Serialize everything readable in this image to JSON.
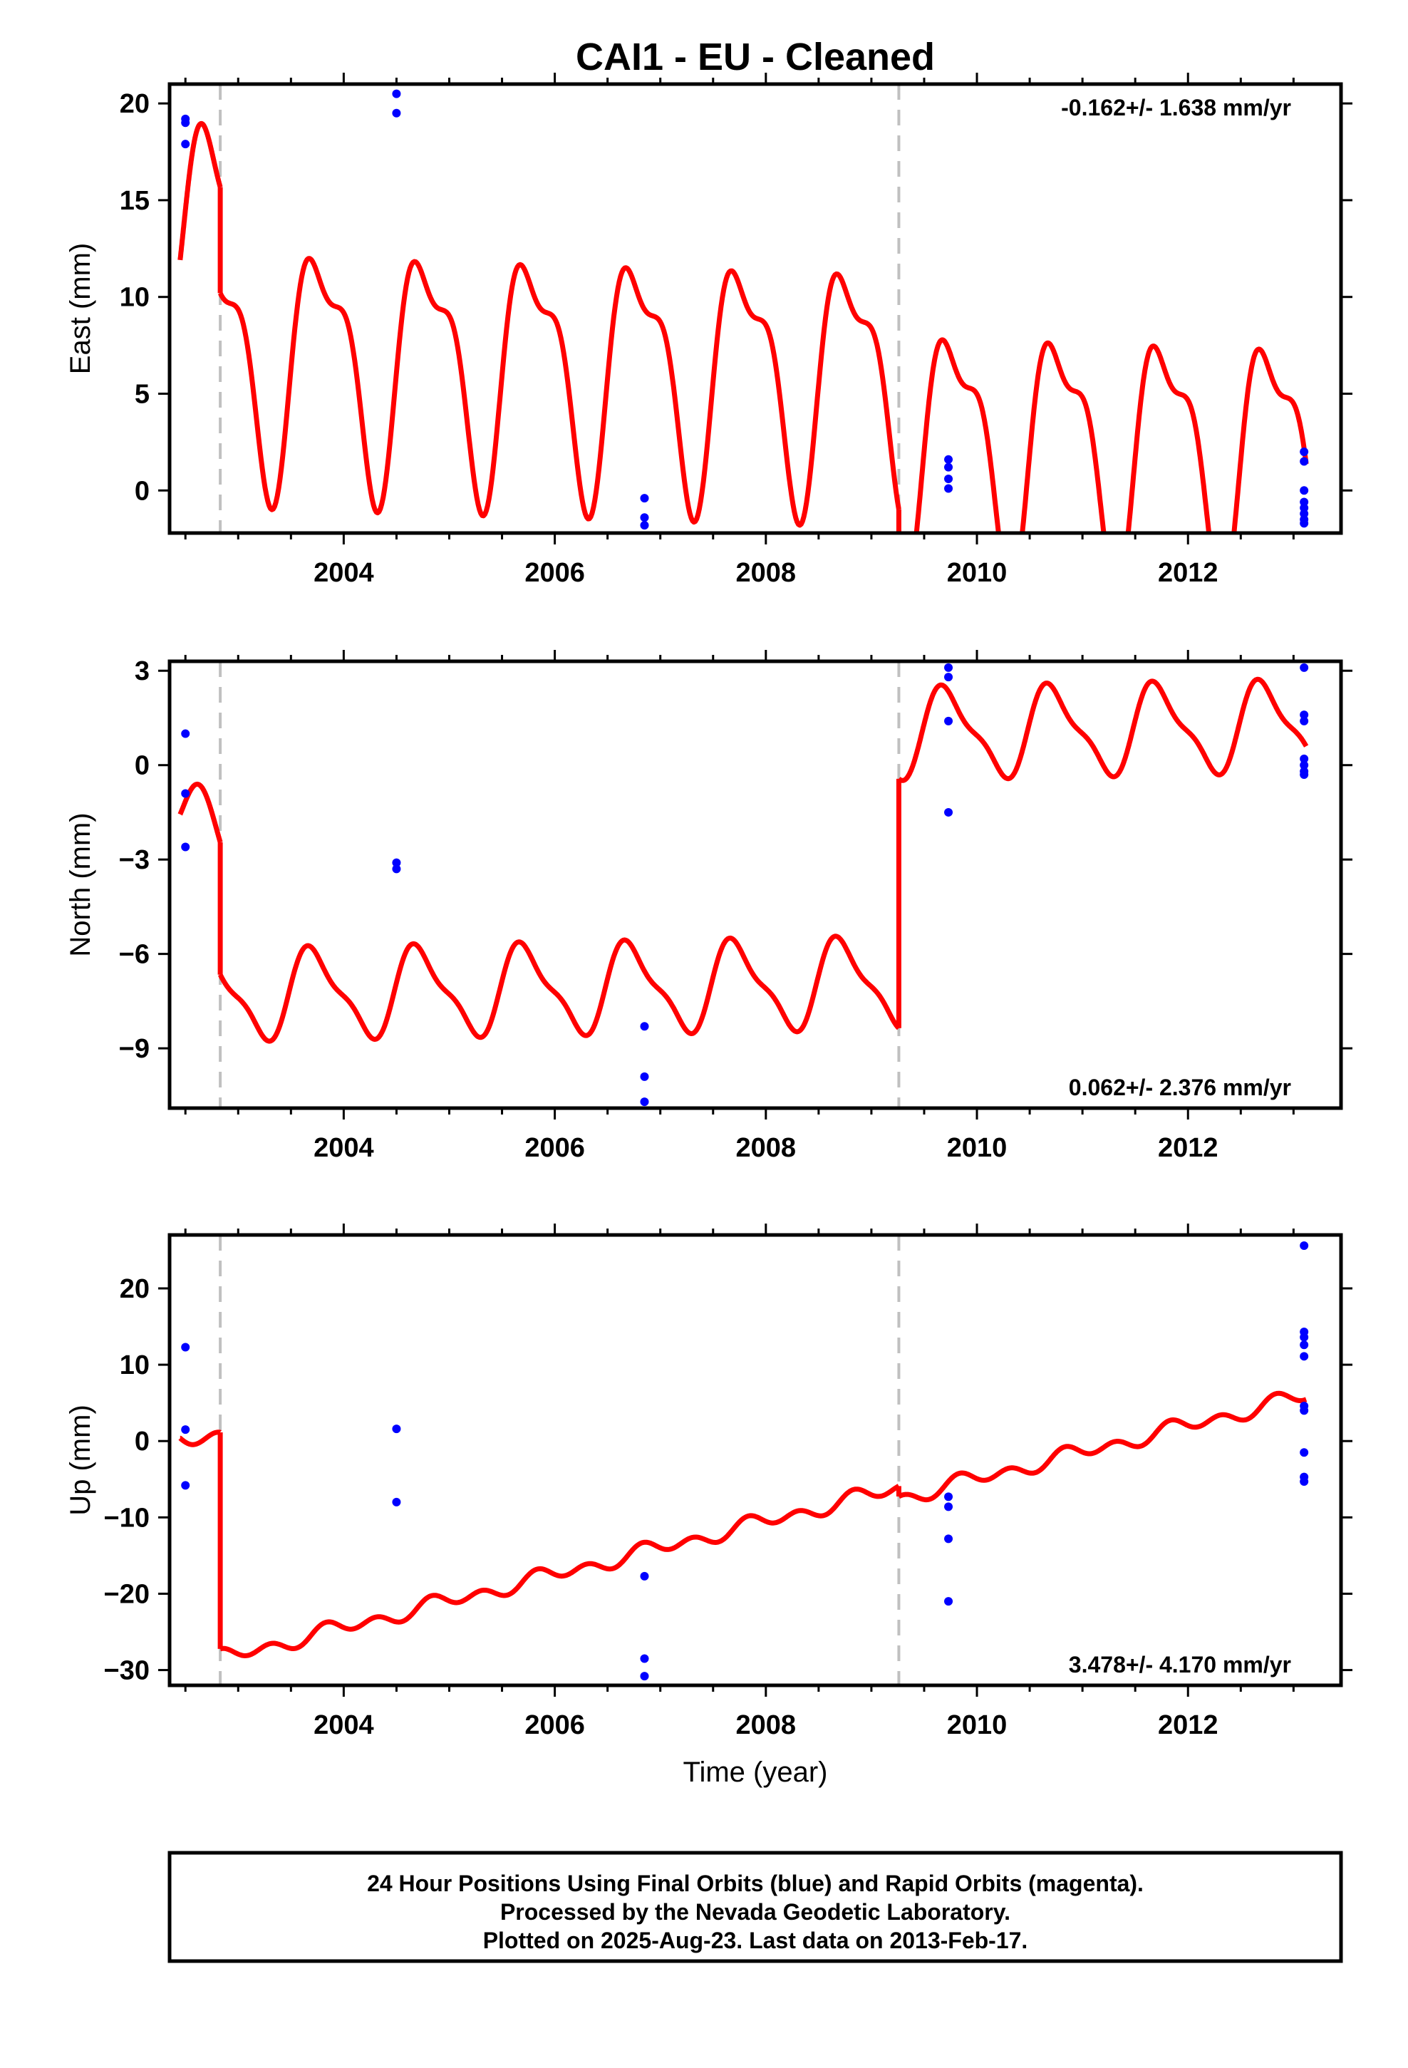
{
  "title": "CAI1  - EU - Cleaned",
  "xlabel": "Time (year)",
  "colors": {
    "model": "#ff0000",
    "data": "#0000ff",
    "offset": "#c0c0c0",
    "frame": "#000000"
  },
  "footer": {
    "line1": "24 Hour Positions Using Final Orbits (blue) and Rapid Orbits (magenta).",
    "line2": "Processed by the Nevada Geodetic Laboratory.",
    "line3": "Plotted on 2025-Aug-23. Last data on 2013-Feb-17."
  },
  "chart_data": [
    {
      "type": "scatter",
      "name": "east",
      "ylabel": "East (mm)",
      "rate_text": "-0.162+/- 1.638 mm/yr",
      "rate_position": "top-right",
      "xlim": [
        2002.35,
        2013.45
      ],
      "ylim": [
        -2.2,
        21.0
      ],
      "xticks": [
        2004,
        2006,
        2008,
        2010,
        2012
      ],
      "yticks": [
        0,
        5,
        10,
        15,
        20
      ],
      "offsets": [
        2002.83,
        2009.26
      ],
      "points": [
        [
          2002.5,
          19.2
        ],
        [
          2002.5,
          19.0
        ],
        [
          2002.5,
          17.9
        ],
        [
          2004.5,
          20.5
        ],
        [
          2004.5,
          19.5
        ],
        [
          2006.85,
          -0.4
        ],
        [
          2006.85,
          -1.4
        ],
        [
          2006.85,
          -1.8
        ],
        [
          2009.73,
          1.6
        ],
        [
          2009.73,
          1.2
        ],
        [
          2009.73,
          0.6
        ],
        [
          2009.73,
          0.1
        ],
        [
          2013.1,
          2.0
        ],
        [
          2013.1,
          1.5
        ],
        [
          2013.1,
          0.0
        ],
        [
          2013.1,
          -0.6
        ],
        [
          2013.1,
          -0.9
        ],
        [
          2013.1,
          -1.2
        ],
        [
          2013.1,
          -1.5
        ],
        [
          2013.1,
          -1.7
        ]
      ],
      "model": {
        "segments": [
          {
            "t0": 2002.45,
            "t1": 2002.83,
            "base": 15.4,
            "slope": -8.0,
            "ref": 2002.45
          },
          {
            "t0": 2002.83,
            "t1": 2009.26,
            "base": 6.85,
            "slope": -0.16,
            "ref": 2003.0
          },
          {
            "t0": 2009.26,
            "t1": 2013.12,
            "base": 2.6,
            "slope": -0.16,
            "ref": 2009.26
          }
        ],
        "annual_cos": 1.5,
        "annual_sin": -5.5,
        "semi_cos": 1.0,
        "semi_sin": 2.0
      }
    },
    {
      "type": "scatter",
      "name": "north",
      "ylabel": "North (mm)",
      "rate_text": "0.062+/- 2.376 mm/yr",
      "rate_position": "bottom-right",
      "xlim": [
        2002.35,
        2013.45
      ],
      "ylim": [
        -10.9,
        3.3
      ],
      "xticks": [
        2004,
        2006,
        2008,
        2010,
        2012
      ],
      "yticks": [
        3,
        0,
        -3,
        -6,
        -9
      ],
      "offsets": [
        2002.83,
        2009.26
      ],
      "points": [
        [
          2002.5,
          1.0
        ],
        [
          2002.5,
          -0.9
        ],
        [
          2002.5,
          -2.6
        ],
        [
          2004.5,
          -3.1
        ],
        [
          2004.5,
          -3.3
        ],
        [
          2006.85,
          -8.3
        ],
        [
          2006.85,
          -9.9
        ],
        [
          2006.85,
          -10.7
        ],
        [
          2009.73,
          3.1
        ],
        [
          2009.73,
          2.8
        ],
        [
          2009.73,
          1.4
        ],
        [
          2009.73,
          -1.5
        ],
        [
          2013.1,
          3.1
        ],
        [
          2013.1,
          1.6
        ],
        [
          2013.1,
          1.4
        ],
        [
          2013.1,
          0.2
        ],
        [
          2013.1,
          0.0
        ],
        [
          2013.1,
          -0.2
        ],
        [
          2013.1,
          -0.3
        ]
      ],
      "model": {
        "segments": [
          {
            "t0": 2002.45,
            "t1": 2002.83,
            "base": -1.2,
            "slope": -5.0,
            "ref": 2002.45
          },
          {
            "t0": 2002.83,
            "t1": 2009.26,
            "base": -7.3,
            "slope": 0.06,
            "ref": 2003.0
          },
          {
            "t0": 2009.26,
            "t1": 2013.12,
            "base": 1.0,
            "slope": 0.06,
            "ref": 2009.26
          }
        ],
        "annual_cos": -0.2,
        "annual_sin": -1.3,
        "semi_cos": 0.1,
        "semi_sin": 0.4
      }
    },
    {
      "type": "scatter",
      "name": "up",
      "ylabel": "Up (mm)",
      "rate_text": "3.478+/- 4.170 mm/yr",
      "rate_position": "bottom-right",
      "xlim": [
        2002.35,
        2013.45
      ],
      "ylim": [
        -32.0,
        27.0
      ],
      "xticks": [
        2004,
        2006,
        2008,
        2010,
        2012
      ],
      "yticks": [
        20,
        10,
        0,
        -10,
        -20,
        -30
      ],
      "offsets": [
        2002.83,
        2009.26
      ],
      "points": [
        [
          2002.5,
          12.3
        ],
        [
          2002.5,
          1.5
        ],
        [
          2002.5,
          -5.8
        ],
        [
          2004.5,
          1.6
        ],
        [
          2004.5,
          -8.0
        ],
        [
          2006.85,
          -17.7
        ],
        [
          2006.85,
          -28.5
        ],
        [
          2006.85,
          -30.8
        ],
        [
          2009.73,
          -7.3
        ],
        [
          2009.73,
          -8.6
        ],
        [
          2009.73,
          -12.8
        ],
        [
          2009.73,
          -21.0
        ],
        [
          2013.1,
          25.6
        ],
        [
          2013.1,
          14.3
        ],
        [
          2013.1,
          13.6
        ],
        [
          2013.1,
          12.6
        ],
        [
          2013.1,
          11.1
        ],
        [
          2013.1,
          4.6
        ],
        [
          2013.1,
          4.0
        ],
        [
          2013.1,
          -1.5
        ],
        [
          2013.1,
          -4.7
        ],
        [
          2013.1,
          -5.3
        ]
      ],
      "model": {
        "segments": [
          {
            "t0": 2002.45,
            "t1": 2002.83,
            "base": 1.0,
            "slope": -3.0,
            "ref": 2002.45
          },
          {
            "t0": 2002.83,
            "t1": 2009.26,
            "base": -28.5,
            "slope": 3.478,
            "ref": 2002.83
          },
          {
            "t0": 2009.26,
            "t1": 2013.12,
            "base": -7.5,
            "slope": 3.478,
            "ref": 2009.26
          }
        ],
        "annual_cos": 0.5,
        "annual_sin": -0.3,
        "semi_cos": -0.5,
        "semi_sin": -0.6
      }
    }
  ]
}
